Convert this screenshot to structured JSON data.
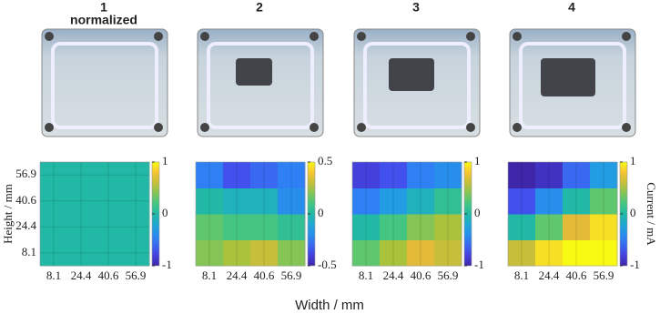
{
  "axis_labels": {
    "xlabel": "Width / mm",
    "ylabel": "Height / mm",
    "colorbar_label": "Current / mA"
  },
  "chart_data": [
    {
      "type": "heatmap",
      "title": "1",
      "subtitle": "normalized",
      "colormap": "parula",
      "x": [
        8.1,
        24.4,
        40.6,
        56.9
      ],
      "y": [
        8.1,
        24.4,
        40.6,
        56.9
      ],
      "values": [
        [
          0,
          0,
          0,
          0
        ],
        [
          0,
          0,
          0,
          0
        ],
        [
          0,
          0,
          0,
          0
        ],
        [
          0,
          0,
          0,
          0
        ]
      ],
      "xlim": [
        0,
        65
      ],
      "ylim": [
        0,
        65
      ],
      "xticks": [
        8.1,
        24.4,
        40.6,
        56.9
      ],
      "yticks": [
        8.1,
        24.4,
        40.6,
        56.9
      ],
      "clim": [
        -1,
        1
      ],
      "cticks": [
        -1,
        0,
        1
      ]
    },
    {
      "type": "heatmap",
      "title": "2",
      "colormap": "parula",
      "x": [
        8.1,
        24.4,
        40.6,
        56.9
      ],
      "y": [
        8.1,
        24.4,
        40.6,
        56.9
      ],
      "values": [
        [
          0.2,
          0.25,
          0.3,
          0.2
        ],
        [
          0.15,
          0.1,
          0.1,
          0.05
        ],
        [
          0,
          -0.05,
          -0.05,
          -0.2
        ],
        [
          -0.25,
          -0.35,
          -0.3,
          -0.25
        ]
      ],
      "xlim": [
        0,
        65
      ],
      "ylim": [
        0,
        65
      ],
      "xticks": [
        8.1,
        24.4,
        40.6,
        56.9
      ],
      "clim": [
        -0.5,
        0.5
      ],
      "cticks": [
        -0.5,
        0,
        0.5
      ]
    },
    {
      "type": "heatmap",
      "title": "3",
      "colormap": "parula",
      "x": [
        8.1,
        24.4,
        40.6,
        56.9
      ],
      "y": [
        8.1,
        24.4,
        40.6,
        56.9
      ],
      "values": [
        [
          0.3,
          0.5,
          0.7,
          0.6
        ],
        [
          0,
          0.2,
          0.4,
          0.5
        ],
        [
          -0.5,
          -0.3,
          -0.1,
          0.1
        ],
        [
          -0.8,
          -0.7,
          -0.5,
          -0.4
        ]
      ],
      "xlim": [
        0,
        65
      ],
      "ylim": [
        0,
        65
      ],
      "xticks": [
        8.1,
        24.4,
        40.6,
        56.9
      ],
      "clim": [
        -1,
        1
      ],
      "cticks": [
        -1,
        0,
        1
      ]
    },
    {
      "type": "heatmap",
      "title": "4",
      "colormap": "parula",
      "x": [
        8.1,
        24.4,
        40.6,
        56.9
      ],
      "y": [
        8.1,
        24.4,
        40.6,
        56.9
      ],
      "values": [
        [
          0.6,
          0.9,
          1,
          1
        ],
        [
          0,
          0.3,
          0.7,
          0.9
        ],
        [
          -0.7,
          -0.4,
          0,
          0.3
        ],
        [
          -1,
          -0.9,
          -0.6,
          -0.3
        ]
      ],
      "xlim": [
        0,
        65
      ],
      "ylim": [
        0,
        65
      ],
      "xticks": [
        8.1,
        24.4,
        40.6,
        56.9
      ],
      "clim": [
        -1,
        1
      ],
      "cticks": [
        -1,
        0,
        1
      ]
    }
  ]
}
